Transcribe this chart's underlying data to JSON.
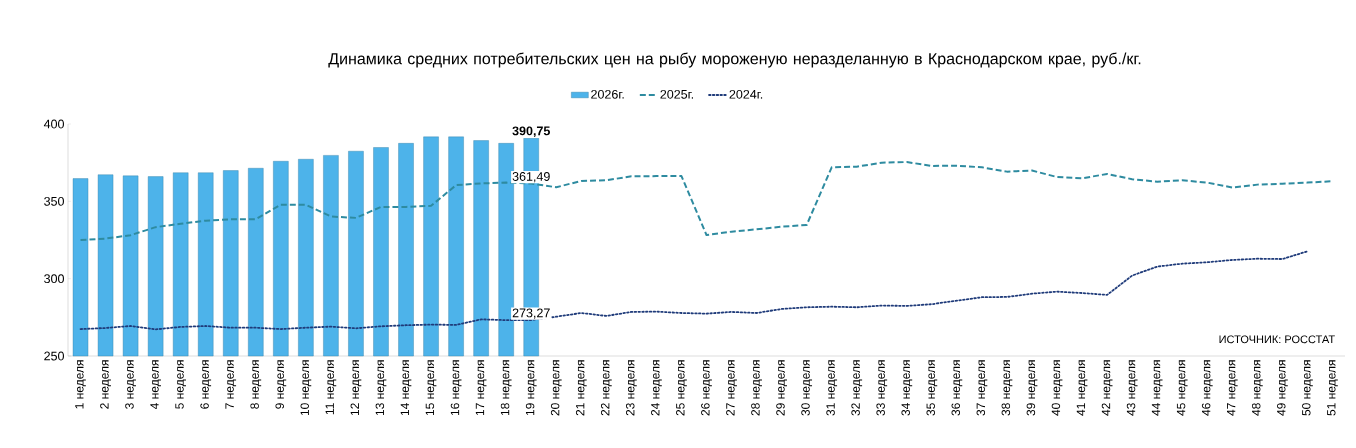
{
  "chart_data": {
    "type": "bar",
    "title": "Динамика средних потребительских цен на рыбу мороженую неразделанную в Краснодарском крае, руб./кг.",
    "categories": [
      "1 неделя",
      "2 неделя",
      "3 неделя",
      "4 неделя",
      "5 неделя",
      "6 неделя",
      "7 неделя",
      "8 неделя",
      "9 неделя",
      "10 неделя",
      "11 неделя",
      "12 неделя",
      "13 неделя",
      "14 неделя",
      "15 неделя",
      "16 неделя",
      "17 неделя",
      "18 неделя",
      "19 неделя",
      "20 неделя",
      "21 неделя",
      "22 неделя",
      "23 неделя",
      "24 неделя",
      "25 неделя",
      "26 неделя",
      "27 неделя",
      "28 неделя",
      "29 неделя",
      "30 неделя",
      "31 неделя",
      "32 неделя",
      "33 неделя",
      "34 неделя",
      "35 неделя",
      "36 неделя",
      "37 неделя",
      "38 неделя",
      "39 неделя",
      "40 неделя",
      "41 неделя",
      "42 неделя",
      "43 неделя",
      "44 неделя",
      "45 неделя",
      "46 неделя",
      "47 неделя",
      "48 неделя",
      "49 неделя",
      "50 неделя",
      "51 неделя"
    ],
    "series": [
      {
        "name": "2026г.",
        "color": "#4db3ea",
        "values": [
          364.7,
          367.2,
          366.5,
          366,
          368.5,
          368.5,
          369.9,
          371.4,
          375.9,
          377.2,
          379.7,
          382.4,
          384.8,
          387.5,
          391.7,
          391.7,
          389.3,
          387.5,
          390.75,
          null,
          null,
          null,
          null,
          null,
          null,
          null,
          null,
          null,
          null,
          null,
          null,
          null,
          null,
          null,
          null,
          null,
          null,
          null,
          null,
          null,
          null,
          null,
          null,
          null,
          null,
          null,
          null,
          null,
          null,
          null,
          null
        ],
        "value_labels": [
          null,
          null,
          null,
          null,
          null,
          null,
          null,
          null,
          null,
          null,
          null,
          null,
          null,
          null,
          null,
          null,
          null,
          null,
          "390,75",
          null,
          null,
          null,
          null,
          null,
          null,
          null,
          null,
          null,
          null,
          null,
          null,
          null,
          null,
          null,
          null,
          null,
          null,
          null,
          null,
          null,
          null,
          null,
          null,
          null,
          null,
          null,
          null,
          null,
          null,
          null,
          null
        ]
      },
      {
        "name": "2025г.",
        "type": "line",
        "line_style": "dashed",
        "color": "#2e8ba0",
        "values": [
          325,
          325.9,
          328.1,
          333.3,
          335.5,
          337.5,
          338.4,
          338.4,
          347.8,
          347.8,
          340.2,
          339.3,
          346.4,
          346.4,
          347.1,
          360.5,
          361.6,
          362.1,
          361.49,
          359.1,
          363.2,
          363.6,
          366.2,
          366.3,
          366.3,
          328.2,
          330.4,
          331.9,
          333.6,
          334.7,
          372,
          372.4,
          375,
          375.4,
          372.9,
          373,
          372,
          369.2,
          369.9,
          365.7,
          364.9,
          367.7,
          364.3,
          362.7,
          363.6,
          362.1,
          358.9,
          360.8,
          361.4,
          362.1,
          363
        ],
        "value_labels": [
          null,
          null,
          null,
          null,
          null,
          null,
          null,
          null,
          null,
          null,
          null,
          null,
          null,
          null,
          null,
          null,
          null,
          null,
          "361,49",
          null,
          null,
          null,
          null,
          null,
          null,
          null,
          null,
          null,
          null,
          null,
          null,
          null,
          null,
          null,
          null,
          null,
          null,
          null,
          null,
          null,
          null,
          null,
          null,
          null,
          null,
          null,
          null,
          null,
          null,
          null,
          null
        ]
      },
      {
        "name": "2024г.",
        "type": "line",
        "line_style": "dotted",
        "color": "#1f3b7a",
        "values": [
          267.4,
          268.1,
          269.4,
          267.2,
          268.8,
          269.4,
          268.3,
          268.3,
          267.4,
          268.3,
          269,
          267.9,
          269.2,
          269.9,
          270.3,
          270.1,
          273.7,
          273.2,
          273.27,
          275.4,
          277.8,
          275.9,
          278.5,
          278.7,
          277.8,
          277.4,
          278.5,
          277.8,
          280.4,
          281.5,
          281.9,
          281.5,
          282.6,
          282.4,
          283.5,
          285.8,
          288,
          288.2,
          290.3,
          291.6,
          290.7,
          289.5,
          302,
          307.8,
          309.7,
          310.6,
          312.1,
          312.9,
          312.7,
          317.7,
          null
        ],
        "value_labels": [
          null,
          null,
          null,
          null,
          null,
          null,
          null,
          null,
          null,
          null,
          null,
          null,
          null,
          null,
          null,
          null,
          null,
          null,
          "273,27",
          null,
          null,
          null,
          null,
          null,
          null,
          null,
          null,
          null,
          null,
          null,
          null,
          null,
          null,
          null,
          null,
          null,
          null,
          null,
          null,
          null,
          null,
          null,
          null,
          null,
          null,
          null,
          null,
          null,
          null,
          null,
          null
        ]
      }
    ],
    "ylim": [
      250,
      400
    ],
    "yticks": [
      250,
      300,
      350,
      400
    ],
    "legend": "top",
    "annotations": [
      "ИСТОЧНИК: РОССТАТ"
    ]
  }
}
